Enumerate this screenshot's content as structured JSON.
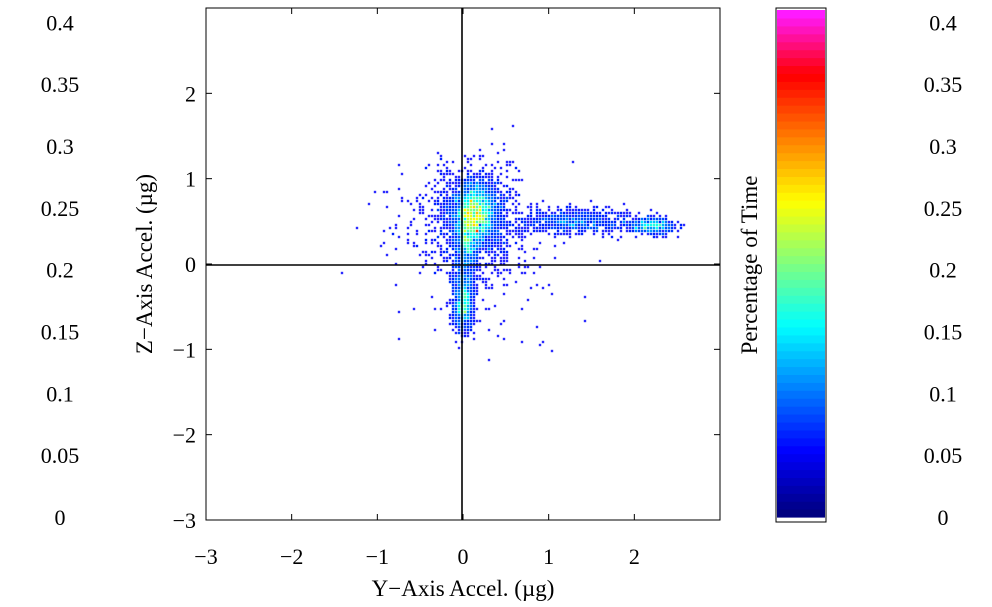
{
  "chart_data": {
    "type": "heatmap",
    "title": "",
    "xlabel": "Y−Axis Accel. (µg)",
    "ylabel": "Z−Axis Accel. (µg)",
    "xlim": [
      -3,
      3
    ],
    "ylim": [
      -3,
      3
    ],
    "x_ticks": [
      "−3",
      "−2",
      "−1",
      "0",
      "1",
      "2"
    ],
    "y_ticks": [
      "−3",
      "−2",
      "−1",
      "0",
      "1",
      "2"
    ],
    "reference_lines": {
      "x": 0,
      "y": 0
    },
    "colorbar": {
      "label": "Percentage of Time",
      "range": [
        0,
        0.41
      ],
      "ticks": [
        "0",
        "0.05",
        "0.1",
        "0.15",
        "0.2",
        "0.25",
        "0.3",
        "0.35",
        "0.4"
      ],
      "colormap": "jet"
    },
    "left_scale_ticks": [
      "0",
      "0.05",
      "0.1",
      "0.15",
      "0.2",
      "0.25",
      "0.3",
      "0.35",
      "0.4"
    ],
    "density_peaks": [
      {
        "x": 0.15,
        "y": 0.65,
        "value": 0.33
      },
      {
        "x": 0.05,
        "y": 0.35,
        "value": 0.12
      },
      {
        "x": 0.0,
        "y": -0.5,
        "value": 0.06
      },
      {
        "x": 2.2,
        "y": 0.45,
        "value": 0.04
      }
    ],
    "marker_color": "#2b2bff"
  }
}
